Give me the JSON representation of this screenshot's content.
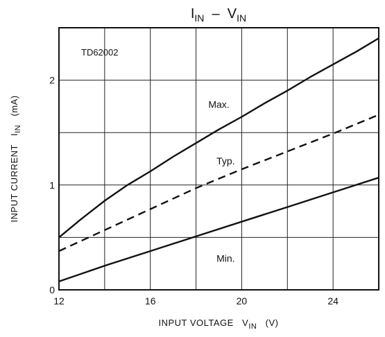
{
  "chart_data": {
    "type": "line",
    "title": {
      "main1": "I",
      "sub1": "IN",
      "dash": "  –  ",
      "main2": "V",
      "sub2": "IN"
    },
    "xlabel": {
      "text": "INPUT VOLTAGE   V",
      "sub": "IN",
      "unit": "   (V)"
    },
    "ylabel": {
      "text": "INPUT CURRENT   I",
      "sub": "IN",
      "unit": "   (mA)"
    },
    "xlim": [
      12,
      26
    ],
    "ylim": [
      0,
      2.5
    ],
    "x_grid": [
      12,
      14,
      16,
      18,
      20,
      22,
      24,
      26
    ],
    "y_grid": [
      0,
      0.5,
      1,
      1.5,
      2,
      2.5
    ],
    "x_ticks": [
      {
        "value": 12,
        "label": "12"
      },
      {
        "value": 16,
        "label": "16"
      },
      {
        "value": 20,
        "label": "20"
      },
      {
        "value": 24,
        "label": "24"
      }
    ],
    "y_ticks": [
      {
        "value": 0,
        "label": "0"
      },
      {
        "value": 1,
        "label": "1"
      },
      {
        "value": 2,
        "label": "2"
      }
    ],
    "part_label": "TD62002",
    "series": [
      {
        "name": "Max.",
        "style": "solid",
        "label_at": [
          19.0,
          1.77
        ],
        "points": [
          [
            12,
            0.5
          ],
          [
            13,
            0.68
          ],
          [
            14,
            0.85
          ],
          [
            15,
            1.0
          ],
          [
            16,
            1.13
          ],
          [
            17,
            1.27
          ],
          [
            18,
            1.4
          ],
          [
            19,
            1.53
          ],
          [
            20,
            1.65
          ],
          [
            21,
            1.78
          ],
          [
            22,
            1.9
          ],
          [
            23,
            2.03
          ],
          [
            24,
            2.15
          ],
          [
            25,
            2.27
          ],
          [
            26,
            2.4
          ]
        ]
      },
      {
        "name": "Typ.",
        "style": "dashed",
        "label_at": [
          19.3,
          1.23
        ],
        "points": [
          [
            12,
            0.37
          ],
          [
            14,
            0.57
          ],
          [
            16,
            0.77
          ],
          [
            18,
            0.97
          ],
          [
            20,
            1.15
          ],
          [
            22,
            1.32
          ],
          [
            24,
            1.49
          ],
          [
            26,
            1.67
          ]
        ]
      },
      {
        "name": "Min.",
        "style": "solid",
        "label_at": [
          19.3,
          0.3
        ],
        "points": [
          [
            12,
            0.08
          ],
          [
            14,
            0.23
          ],
          [
            16,
            0.37
          ],
          [
            18,
            0.51
          ],
          [
            20,
            0.65
          ],
          [
            22,
            0.79
          ],
          [
            24,
            0.93
          ],
          [
            26,
            1.07
          ]
        ]
      }
    ]
  }
}
